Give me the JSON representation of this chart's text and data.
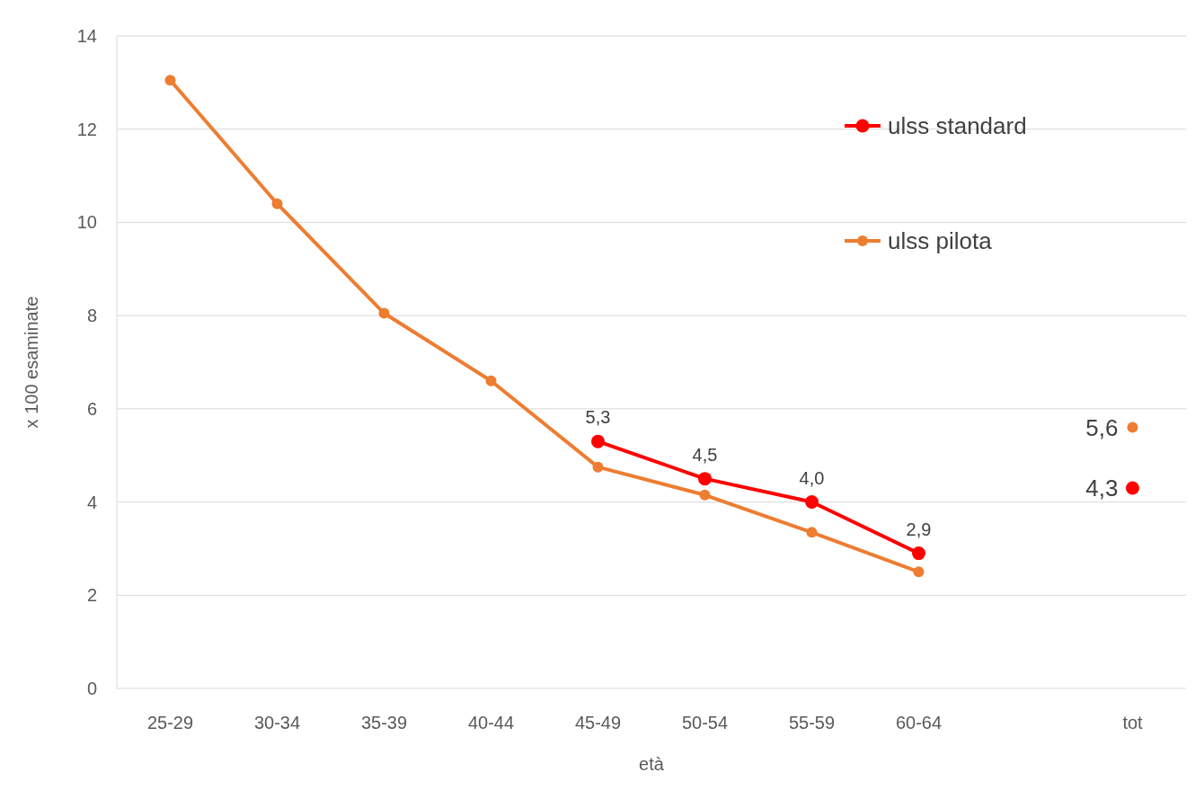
{
  "chart_data": {
    "type": "line",
    "xlabel": "età",
    "ylabel": "x 100 esaminate",
    "categories": [
      "25-29",
      "30-34",
      "35-39",
      "40-44",
      "45-49",
      "50-54",
      "55-59",
      "60-64",
      null,
      "tot"
    ],
    "series": [
      {
        "name": "ulss standard",
        "color": "#ff0000",
        "values": [
          null,
          null,
          null,
          null,
          5.3,
          4.5,
          4.0,
          2.9,
          null,
          4.3
        ],
        "value_labels": [
          null,
          null,
          null,
          null,
          "5,3",
          "4,5",
          "4,0",
          "2,9",
          null,
          "4,3"
        ]
      },
      {
        "name": "ulss pilota",
        "color": "#ed7d31",
        "values": [
          13.05,
          10.4,
          8.05,
          6.6,
          4.75,
          4.15,
          3.35,
          2.5,
          null,
          5.6
        ],
        "value_labels": [
          null,
          null,
          null,
          null,
          null,
          null,
          null,
          null,
          null,
          "5,6"
        ]
      }
    ],
    "ylim": [
      0,
      14
    ],
    "yticks": [
      0,
      2,
      4,
      6,
      8,
      10,
      12,
      14
    ],
    "grid": "y",
    "legend": "top right",
    "marker": "circle",
    "line_style": "solid"
  }
}
